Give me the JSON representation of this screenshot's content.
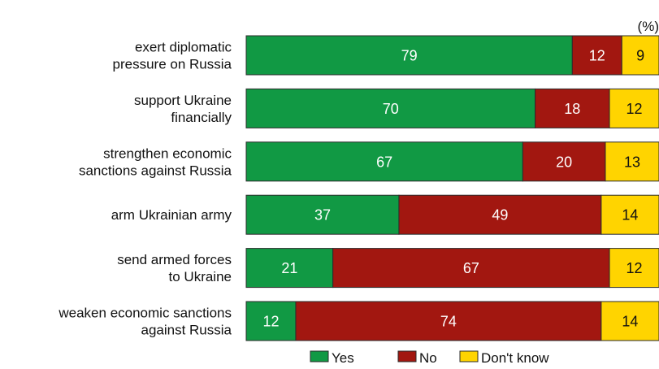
{
  "chart_data": {
    "type": "bar",
    "orientation": "horizontal",
    "stacked": true,
    "unit_label": "(%)",
    "categories": [
      [
        "exert diplomatic",
        "pressure on Russia"
      ],
      [
        "support Ukraine",
        "financially"
      ],
      [
        "strengthen economic",
        "sanctions against Russia"
      ],
      [
        "arm Ukrainian army"
      ],
      [
        "send armed forces",
        "to Ukraine"
      ],
      [
        "weaken economic sanctions",
        "against Russia"
      ]
    ],
    "series": [
      {
        "name": "Yes",
        "color": "#119944",
        "values": [
          79,
          70,
          67,
          37,
          21,
          12
        ]
      },
      {
        "name": "No",
        "color": "#A21710",
        "values": [
          12,
          18,
          20,
          49,
          67,
          74
        ]
      },
      {
        "name": "Don't know",
        "color": "#FFD400",
        "values": [
          9,
          12,
          13,
          14,
          12,
          14
        ]
      }
    ],
    "xlim": [
      0,
      100
    ],
    "legend_position": "bottom"
  }
}
